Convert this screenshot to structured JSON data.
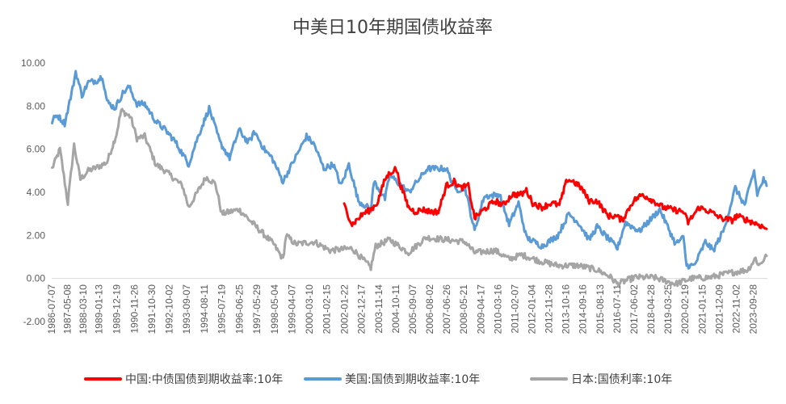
{
  "chart_data": {
    "type": "line",
    "title": "中美日10年期国债收益率",
    "xlabel": "",
    "ylabel": "",
    "ylim": [
      -2,
      10
    ],
    "y_ticks": [
      -2,
      0,
      2,
      4,
      6,
      8,
      10
    ],
    "y_tick_labels": [
      "-2.00",
      "0.00",
      "2.00",
      "4.00",
      "6.00",
      "8.00",
      "10.00"
    ],
    "grid": false,
    "legend_position": "bottom",
    "x_range": [
      "1986-07-07",
      "2024-06-30"
    ],
    "x_tick_labels": [
      "1986-07-07",
      "1987-05-08",
      "1988-03-10",
      "1989-01-13",
      "1989-12-19",
      "1990-11-26",
      "1991-10-30",
      "1992-10-02",
      "1993-09-07",
      "1994-08-11",
      "1995-07-19",
      "1996-06-25",
      "1997-05-29",
      "1998-05-04",
      "1999-04-07",
      "2000-03-10",
      "2001-02-15",
      "2002-01-22",
      "2002-12-17",
      "2003-11-14",
      "2004-10-11",
      "2005-09-07",
      "2006-08-02",
      "2007-06-26",
      "2008-05-21",
      "2009-04-17",
      "2010-03-16",
      "2011-02-07",
      "2012-01-04",
      "2012-11-28",
      "2013-10-16",
      "2014-09-16",
      "2015-08-13",
      "2016-07-11",
      "2017-06-02",
      "2018-04-28",
      "2019-03-25",
      "2020-02-19",
      "2021-01-15",
      "2021-12-09",
      "2022-11-02",
      "2023-09-28"
    ],
    "series": [
      {
        "name": "中国:中债国债到期收益率:10年",
        "color": "#FF0000",
        "x": [
          "2002-01",
          "2002-06",
          "2003-01",
          "2003-06",
          "2003-10",
          "2004-03",
          "2004-06",
          "2004-10",
          "2005-01",
          "2005-06",
          "2005-10",
          "2006-03",
          "2006-08",
          "2007-01",
          "2007-06",
          "2007-11",
          "2008-03",
          "2008-08",
          "2008-12",
          "2009-06",
          "2010-01",
          "2010-06",
          "2010-12",
          "2011-06",
          "2011-09",
          "2012-01",
          "2012-07",
          "2013-01",
          "2013-06",
          "2013-11",
          "2014-03",
          "2014-08",
          "2015-01",
          "2015-06",
          "2016-01",
          "2016-06",
          "2016-10",
          "2017-05",
          "2017-11",
          "2018-06",
          "2018-12",
          "2019-06",
          "2020-01",
          "2020-04",
          "2020-11",
          "2021-06",
          "2022-01",
          "2022-08",
          "2022-11",
          "2023-06",
          "2024-01",
          "2024-06"
        ],
        "values": [
          3.4,
          2.5,
          3.0,
          3.2,
          3.5,
          4.6,
          4.9,
          5.1,
          4.3,
          3.3,
          3.1,
          3.2,
          3.1,
          3.1,
          4.3,
          4.5,
          4.2,
          4.3,
          2.8,
          3.2,
          3.6,
          3.4,
          3.9,
          3.9,
          4.1,
          3.5,
          3.3,
          3.5,
          3.4,
          4.6,
          4.5,
          4.2,
          3.6,
          3.6,
          2.9,
          2.9,
          2.7,
          3.6,
          3.9,
          3.6,
          3.3,
          3.2,
          3.1,
          2.6,
          3.3,
          3.1,
          2.8,
          2.7,
          2.9,
          2.7,
          2.5,
          2.3
        ]
      },
      {
        "name": "美国:国债到期收益率:10年",
        "color": "#5B9BD5",
        "x": [
          "1986-07",
          "1986-10",
          "1987-03",
          "1987-08",
          "1987-10",
          "1988-02",
          "1988-06",
          "1988-12",
          "1989-03",
          "1989-06",
          "1989-11",
          "1990-04",
          "1990-08",
          "1991-01",
          "1991-06",
          "1992-01",
          "1992-07",
          "1993-01",
          "1993-10",
          "1994-03",
          "1994-11",
          "1995-06",
          "1995-12",
          "1996-06",
          "1996-12",
          "1997-04",
          "1997-10",
          "1998-03",
          "1998-10",
          "1999-03",
          "2000-01",
          "2000-06",
          "2000-12",
          "2001-06",
          "2001-11",
          "2002-04",
          "2002-10",
          "2003-06",
          "2003-08",
          "2004-03",
          "2004-06",
          "2005-06",
          "2006-06",
          "2007-06",
          "2007-12",
          "2008-06",
          "2008-12",
          "2009-06",
          "2010-04",
          "2010-10",
          "2011-04",
          "2011-09",
          "2012-07",
          "2013-05",
          "2013-12",
          "2014-06",
          "2015-01",
          "2015-06",
          "2016-07",
          "2016-12",
          "2017-09",
          "2018-10",
          "2019-08",
          "2020-01",
          "2020-03",
          "2020-08",
          "2021-03",
          "2021-08",
          "2022-03",
          "2022-10",
          "2023-04",
          "2023-10",
          "2023-12",
          "2024-04",
          "2024-06"
        ],
        "values": [
          7.3,
          7.6,
          7.2,
          8.8,
          9.6,
          8.5,
          9.1,
          9.2,
          9.4,
          8.2,
          7.9,
          8.6,
          8.9,
          8.1,
          8.1,
          7.3,
          6.9,
          6.4,
          5.3,
          6.4,
          7.9,
          6.3,
          5.6,
          6.9,
          6.3,
          6.8,
          6.0,
          5.6,
          4.5,
          5.2,
          6.6,
          6.2,
          5.1,
          5.3,
          4.3,
          5.3,
          3.6,
          3.2,
          4.5,
          3.7,
          4.8,
          4.0,
          5.1,
          5.1,
          4.1,
          4.2,
          2.2,
          3.8,
          3.9,
          2.5,
          3.5,
          1.9,
          1.5,
          2.0,
          3.0,
          2.6,
          1.8,
          2.4,
          1.4,
          2.6,
          2.2,
          3.2,
          1.6,
          1.9,
          0.6,
          0.6,
          1.7,
          1.3,
          2.3,
          4.2,
          3.4,
          5.0,
          3.9,
          4.6,
          4.3
        ]
      },
      {
        "name": "日本:国债利率:10年",
        "color": "#A5A5A5",
        "x": [
          "1986-07",
          "1986-12",
          "1987-05",
          "1987-09",
          "1988-01",
          "1988-06",
          "1989-01",
          "1989-06",
          "1989-12",
          "1990-03",
          "1990-09",
          "1991-01",
          "1991-06",
          "1992-01",
          "1992-07",
          "1993-06",
          "1993-10",
          "1994-09",
          "1995-03",
          "1995-07",
          "1996-06",
          "1997-05",
          "1998-04",
          "1998-10",
          "1998-12",
          "1999-06",
          "2000-06",
          "2001-04",
          "2002-06",
          "2003-06",
          "2003-09",
          "2004-06",
          "2005-06",
          "2006-05",
          "2007-06",
          "2008-06",
          "2008-12",
          "2010-01",
          "2010-10",
          "2011-06",
          "2012-06",
          "2013-05",
          "2014-06",
          "2015-06",
          "2016-02",
          "2016-07",
          "2017-06",
          "2018-06",
          "2019-08",
          "2020-06",
          "2021-06",
          "2022-06",
          "2023-06",
          "2023-11",
          "2024-01",
          "2024-06"
        ],
        "values": [
          5.1,
          6.0,
          3.5,
          6.2,
          4.6,
          5.0,
          5.2,
          5.4,
          6.7,
          7.8,
          7.5,
          6.5,
          6.6,
          5.3,
          5.0,
          4.3,
          3.3,
          4.7,
          4.4,
          3.0,
          3.2,
          2.4,
          1.6,
          0.9,
          2.0,
          1.6,
          1.7,
          1.3,
          1.4,
          0.5,
          1.5,
          1.8,
          1.2,
          1.9,
          1.8,
          1.7,
          1.2,
          1.3,
          0.9,
          1.1,
          0.8,
          0.6,
          0.6,
          0.4,
          0.1,
          -0.25,
          0.05,
          0.05,
          -0.25,
          0.0,
          0.05,
          0.25,
          0.4,
          0.95,
          0.6,
          1.05
        ]
      }
    ]
  }
}
